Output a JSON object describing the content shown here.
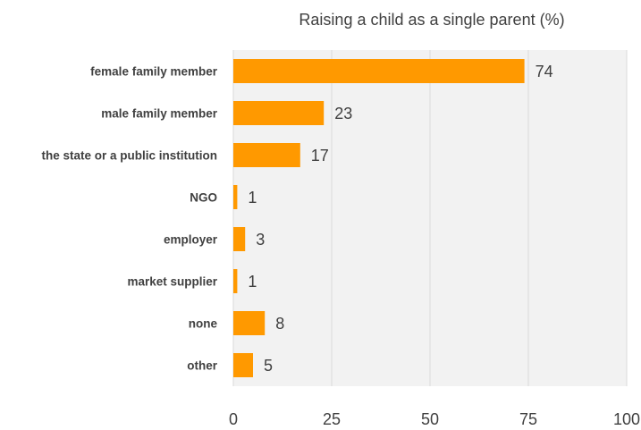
{
  "chart_data": {
    "type": "bar",
    "orientation": "horizontal",
    "title": "Raising a child as a single parent (%)",
    "categories": [
      "female family member",
      "male family member",
      "the state or a public institution",
      "NGO",
      "employer",
      "market supplier",
      "none",
      "other"
    ],
    "values": [
      74,
      23,
      17,
      1,
      3,
      1,
      8,
      5
    ],
    "xlabel": "",
    "ylabel": "",
    "xlim": [
      0,
      100
    ],
    "x_ticks": [
      0,
      25,
      50,
      75,
      100
    ],
    "grid": true,
    "legend": "none",
    "colors": {
      "bar": "#ff9900",
      "plot_background": "#f2f2f2",
      "grid": "#d9d9d9",
      "text": "#404040"
    }
  }
}
